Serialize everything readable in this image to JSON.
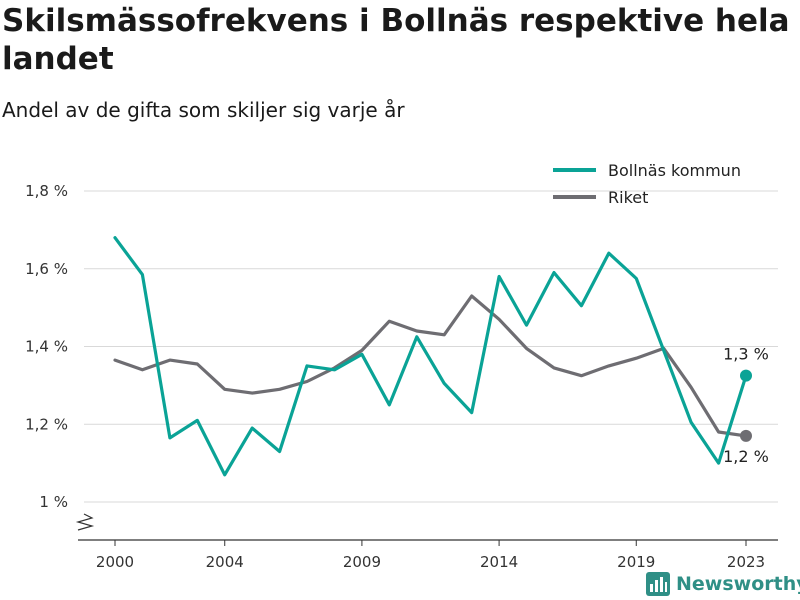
{
  "title": "Skilsmässofrekvens i Bollnäs respektive hela landet",
  "subtitle": "Andel av de gifta som skiljer sig varje år",
  "brand": "Newsworthy",
  "chart_data": {
    "type": "line",
    "x": [
      2000,
      2001,
      2002,
      2003,
      2004,
      2005,
      2006,
      2007,
      2008,
      2009,
      2010,
      2011,
      2012,
      2013,
      2014,
      2015,
      2016,
      2017,
      2018,
      2019,
      2020,
      2021,
      2022,
      2023
    ],
    "series": [
      {
        "name": "Bollnäs kommun",
        "color": "#0aa396",
        "values": [
          1.68,
          1.585,
          1.165,
          1.21,
          1.07,
          1.19,
          1.13,
          1.35,
          1.34,
          1.38,
          1.25,
          1.425,
          1.305,
          1.23,
          1.58,
          1.455,
          1.59,
          1.505,
          1.64,
          1.575,
          1.39,
          1.205,
          1.1,
          1.325
        ],
        "end_label": "1,3 %"
      },
      {
        "name": "Riket",
        "color": "#6e6d72",
        "values": [
          1.365,
          1.34,
          1.365,
          1.355,
          1.29,
          1.28,
          1.29,
          1.31,
          1.345,
          1.39,
          1.465,
          1.44,
          1.43,
          1.53,
          1.47,
          1.395,
          1.345,
          1.325,
          1.35,
          1.37,
          1.395,
          1.295,
          1.18,
          1.17
        ],
        "end_label": "1,2 %"
      }
    ],
    "yticks": [
      1.0,
      1.2,
      1.4,
      1.6,
      1.8
    ],
    "ytick_labels": [
      "1 %",
      "1,2 %",
      "1,4 %",
      "1,6 %",
      "1,8 %"
    ],
    "xticks": [
      2000,
      2004,
      2009,
      2014,
      2019,
      2023
    ],
    "xtick_labels": [
      "2000",
      "2004",
      "2009",
      "2014",
      "2019",
      "2023"
    ],
    "ylim": [
      1.0,
      1.8
    ],
    "xlim": [
      2000,
      2023
    ],
    "grid": "horizontal",
    "legend_position": "top-right",
    "y_axis_break": true
  }
}
